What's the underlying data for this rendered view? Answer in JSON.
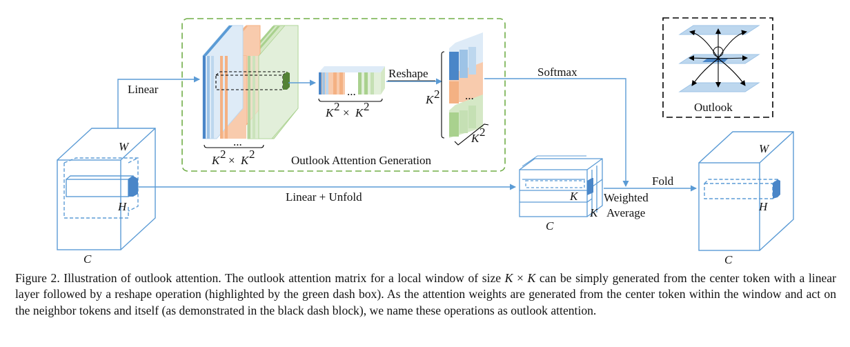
{
  "figure": {
    "labels": {
      "linear": "Linear",
      "reshape": "Reshape",
      "softmax": "Softmax",
      "outlook": "Outlook",
      "linear_unfold": "Linear + Unfold",
      "fold": "Fold",
      "weighted": "Weighted",
      "average": "Average",
      "generation": "Outlook Attention Generation",
      "W": "W",
      "H": "H",
      "C": "C",
      "K": "K",
      "K2": "K",
      "sup2": "2",
      "times": "×",
      "dots": "..."
    },
    "colors": {
      "blue_line": "#5b9bd5",
      "blue_fill": "#4a86c8",
      "light_blue": "#bdd7ee",
      "orange": "#f4b183",
      "light_orange": "#f8cbad",
      "green": "#a9d18e",
      "light_green": "#d5e8c6",
      "dark_green": "#548235",
      "green_dash": "#70ad47"
    }
  },
  "caption": {
    "prefix": "Figure 2. Illustration of outlook attention. The outlook attention matrix for a local window of size ",
    "k1": "K",
    "times": " × ",
    "k2": "K",
    "suffix": " can be simply generated from the center token with a linear layer followed by a reshape operation (highlighted by the green dash box). As the attention weights are generated from the center token within the window and act on the neighbor tokens and itself (as demonstrated in the black dash block), we name these operations as outlook attention."
  }
}
